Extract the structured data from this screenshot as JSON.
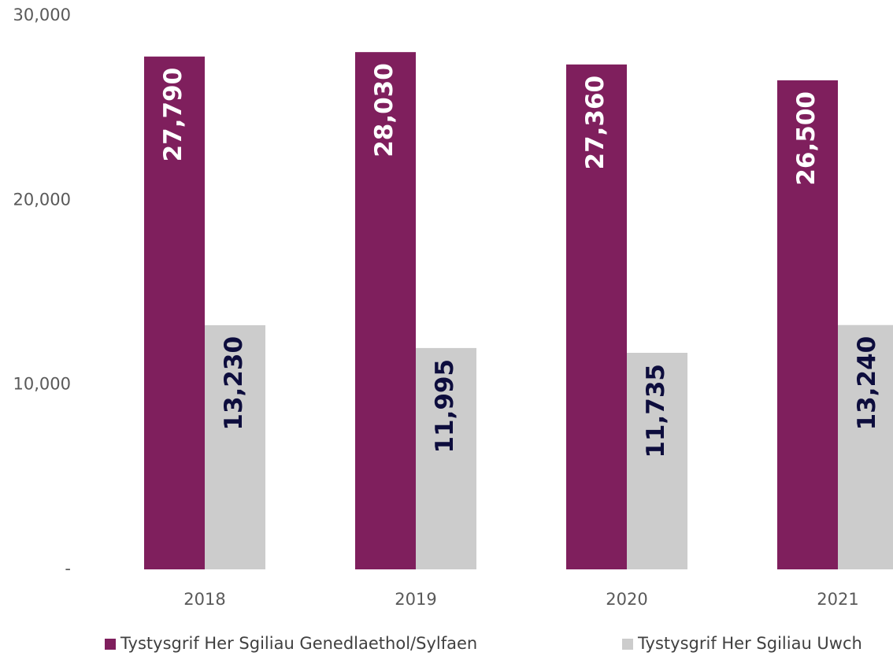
{
  "chart_data": {
    "type": "bar",
    "categories": [
      "2018",
      "2019",
      "2020",
      "2021"
    ],
    "series": [
      {
        "name": "Tystysgrif Her Sgiliau Genedlaethol/Sylfaen",
        "color": "#7f1f5d",
        "label_color": "#ffffff",
        "values": [
          27790,
          28030,
          27360,
          26500
        ],
        "value_labels": [
          "27,790",
          "28,030",
          "27,360",
          "26,500"
        ]
      },
      {
        "name": "Tystysgrif Her Sgiliau Uwch",
        "color": "#cccccc",
        "label_color": "#0d0d3d",
        "values": [
          13230,
          11995,
          11735,
          13240
        ],
        "value_labels": [
          "13,230",
          "11,995",
          "11,735",
          "13,240"
        ]
      }
    ],
    "ylim": [
      0,
      30000
    ],
    "yticks": [
      {
        "value": 0,
        "label": "-"
      },
      {
        "value": 10000,
        "label": "10,000"
      },
      {
        "value": 20000,
        "label": "20,000"
      },
      {
        "value": 30000,
        "label": "30,000"
      }
    ],
    "grid": false
  }
}
